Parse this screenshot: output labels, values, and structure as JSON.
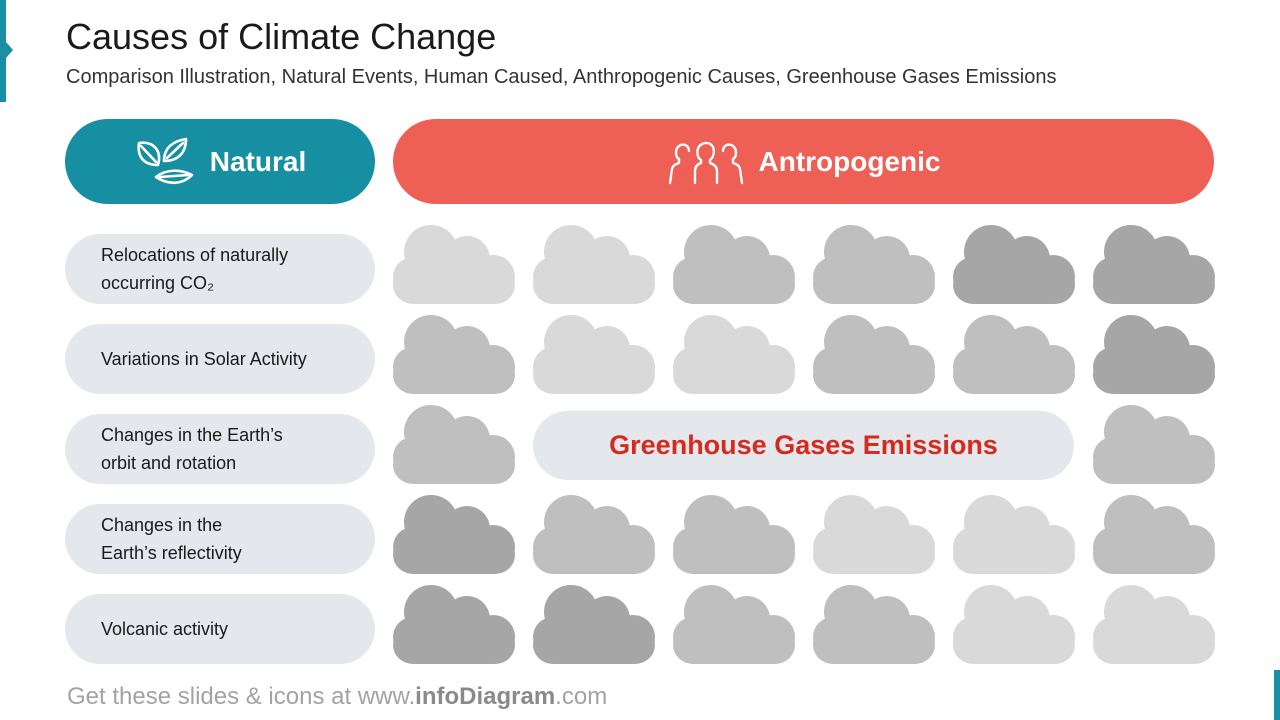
{
  "slide": {
    "title": "Causes of Climate Change",
    "subtitle": "Comparison Illustration, Natural Events, Human Caused, Anthropogenic Causes, Greenhouse Gases Emissions"
  },
  "headers": {
    "natural": {
      "label": "Natural",
      "icon": "leaves-icon",
      "color": "#178fa3"
    },
    "anthropogenic": {
      "label": "Antropogenic",
      "icon": "people-icon",
      "color": "#ee5f55"
    }
  },
  "natural_causes": [
    "Relocations of naturally\noccurring CO₂",
    "Variations in Solar Activity",
    "Changes in the Earth’s\norbit and rotation",
    "Changes in the\nEarth’s reflectivity",
    "Volcanic activity"
  ],
  "center_label": "Greenhouse Gases Emissions",
  "cloud_grid": {
    "icon": "cloud-icon",
    "shades": [
      [
        "#d9d9d9",
        "#d9d9d9",
        "#bfbfbf",
        "#bfbfbf",
        "#a6a6a6",
        "#a6a6a6"
      ],
      [
        "#bfbfbf",
        "#d9d9d9",
        "#d9d9d9",
        "#bfbfbf",
        "#bfbfbf",
        "#a6a6a6"
      ],
      [
        "#bfbfbf",
        null,
        null,
        null,
        null,
        "#bfbfbf"
      ],
      [
        "#a6a6a6",
        "#bfbfbf",
        "#bfbfbf",
        "#d9d9d9",
        "#d9d9d9",
        "#bfbfbf"
      ],
      [
        "#a6a6a6",
        "#a6a6a6",
        "#bfbfbf",
        "#bfbfbf",
        "#d9d9d9",
        "#d9d9d9"
      ]
    ]
  },
  "footer": {
    "prefix": "Get these slides & icons at www.",
    "brand": "infoDiagram",
    "suffix": ".com"
  }
}
